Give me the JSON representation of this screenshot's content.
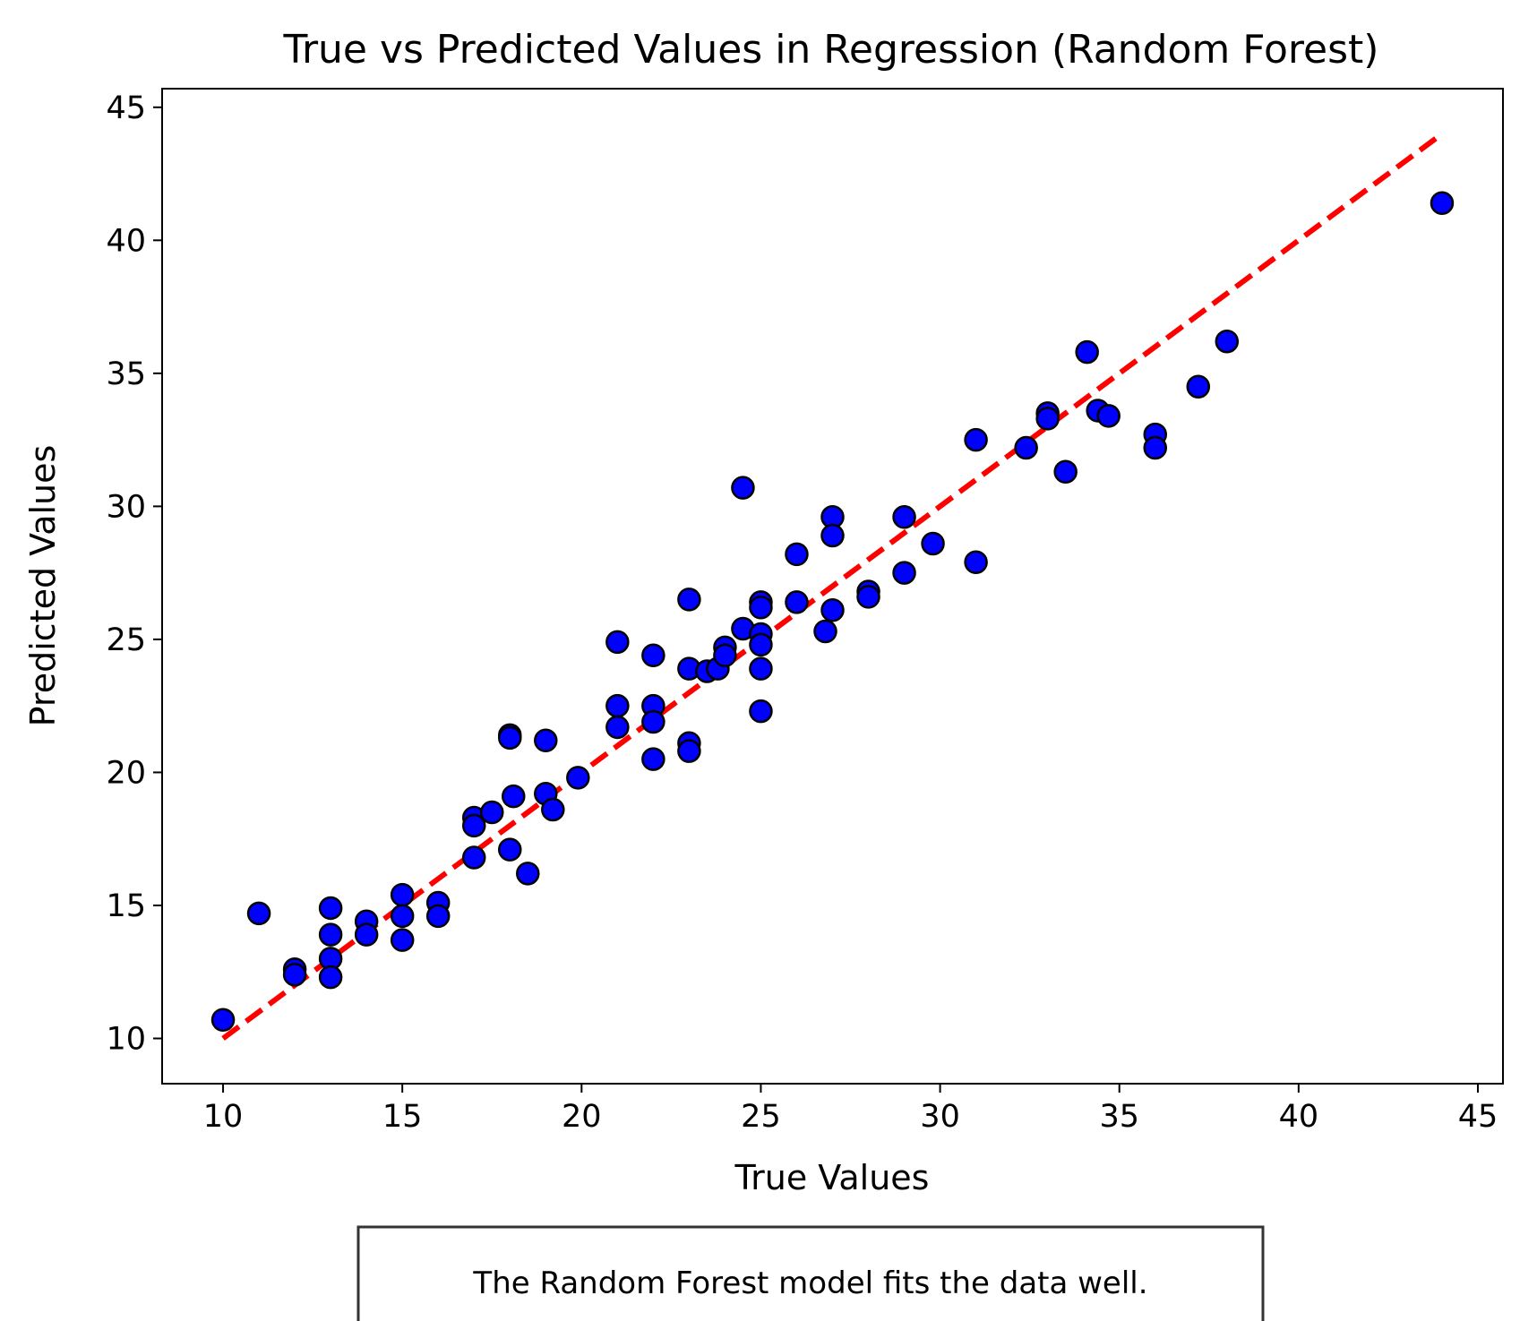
{
  "chart_data": {
    "type": "scatter",
    "title": "True vs Predicted Values in Regression (Random Forest)",
    "xlabel": "True Values",
    "ylabel": "Predicted Values",
    "xlim": [
      8.3,
      45.7
    ],
    "ylim": [
      8.3,
      45.7
    ],
    "xticks": [
      "10",
      "15",
      "20",
      "25",
      "30",
      "35",
      "40",
      "45"
    ],
    "yticks": [
      "10",
      "15",
      "20",
      "25",
      "30",
      "35",
      "40",
      "45"
    ],
    "grid": false,
    "marker_color": "#0000ff",
    "marker_edge_color": "#000000",
    "reference_line": {
      "x": [
        10,
        44
      ],
      "y": [
        10,
        44
      ],
      "color": "#ff0000",
      "style": "dashed"
    },
    "points": [
      {
        "x": 10,
        "y": 10.7
      },
      {
        "x": 11,
        "y": 14.7
      },
      {
        "x": 12,
        "y": 12.6
      },
      {
        "x": 12,
        "y": 12.4
      },
      {
        "x": 13,
        "y": 14.9
      },
      {
        "x": 13,
        "y": 13.9
      },
      {
        "x": 13,
        "y": 13.0
      },
      {
        "x": 13,
        "y": 12.3
      },
      {
        "x": 14,
        "y": 14.4
      },
      {
        "x": 14,
        "y": 13.9
      },
      {
        "x": 15,
        "y": 15.4
      },
      {
        "x": 15,
        "y": 14.6
      },
      {
        "x": 15,
        "y": 13.7
      },
      {
        "x": 16,
        "y": 15.1
      },
      {
        "x": 16,
        "y": 14.6
      },
      {
        "x": 17,
        "y": 18.3
      },
      {
        "x": 17,
        "y": 18.0
      },
      {
        "x": 17,
        "y": 16.8
      },
      {
        "x": 17.5,
        "y": 18.5
      },
      {
        "x": 18,
        "y": 21.4
      },
      {
        "x": 18,
        "y": 21.3
      },
      {
        "x": 18,
        "y": 17.1
      },
      {
        "x": 18.1,
        "y": 19.1
      },
      {
        "x": 18.5,
        "y": 16.2
      },
      {
        "x": 19,
        "y": 21.2
      },
      {
        "x": 19,
        "y": 19.2
      },
      {
        "x": 19.2,
        "y": 18.6
      },
      {
        "x": 19.9,
        "y": 19.8
      },
      {
        "x": 21,
        "y": 24.9
      },
      {
        "x": 21,
        "y": 22.5
      },
      {
        "x": 21,
        "y": 21.7
      },
      {
        "x": 22,
        "y": 24.4
      },
      {
        "x": 22,
        "y": 22.5
      },
      {
        "x": 22,
        "y": 21.9
      },
      {
        "x": 22,
        "y": 20.5
      },
      {
        "x": 23,
        "y": 26.5
      },
      {
        "x": 23,
        "y": 23.9
      },
      {
        "x": 23,
        "y": 21.1
      },
      {
        "x": 23,
        "y": 20.8
      },
      {
        "x": 23.5,
        "y": 23.8
      },
      {
        "x": 23.8,
        "y": 23.9
      },
      {
        "x": 24,
        "y": 24.7
      },
      {
        "x": 24,
        "y": 24.4
      },
      {
        "x": 24.5,
        "y": 30.7
      },
      {
        "x": 24.5,
        "y": 25.4
      },
      {
        "x": 25,
        "y": 26.4
      },
      {
        "x": 25,
        "y": 26.2
      },
      {
        "x": 25,
        "y": 25.2
      },
      {
        "x": 25,
        "y": 24.8
      },
      {
        "x": 25,
        "y": 23.9
      },
      {
        "x": 25,
        "y": 22.3
      },
      {
        "x": 26,
        "y": 28.2
      },
      {
        "x": 26,
        "y": 26.4
      },
      {
        "x": 26.8,
        "y": 25.3
      },
      {
        "x": 27,
        "y": 29.6
      },
      {
        "x": 27,
        "y": 28.9
      },
      {
        "x": 27,
        "y": 26.1
      },
      {
        "x": 28,
        "y": 26.8
      },
      {
        "x": 28,
        "y": 26.6
      },
      {
        "x": 29,
        "y": 29.6
      },
      {
        "x": 29,
        "y": 27.5
      },
      {
        "x": 29.8,
        "y": 28.6
      },
      {
        "x": 31,
        "y": 32.5
      },
      {
        "x": 31,
        "y": 27.9
      },
      {
        "x": 32.4,
        "y": 32.2
      },
      {
        "x": 33,
        "y": 33.5
      },
      {
        "x": 33,
        "y": 33.3
      },
      {
        "x": 33.5,
        "y": 31.3
      },
      {
        "x": 34.1,
        "y": 35.8
      },
      {
        "x": 34.4,
        "y": 33.6
      },
      {
        "x": 34.7,
        "y": 33.4
      },
      {
        "x": 36,
        "y": 32.7
      },
      {
        "x": 36,
        "y": 32.2
      },
      {
        "x": 37.2,
        "y": 34.5
      },
      {
        "x": 38,
        "y": 36.2
      },
      {
        "x": 44,
        "y": 41.4
      }
    ]
  },
  "annotation": {
    "text": "The Random Forest model fits the data well."
  }
}
